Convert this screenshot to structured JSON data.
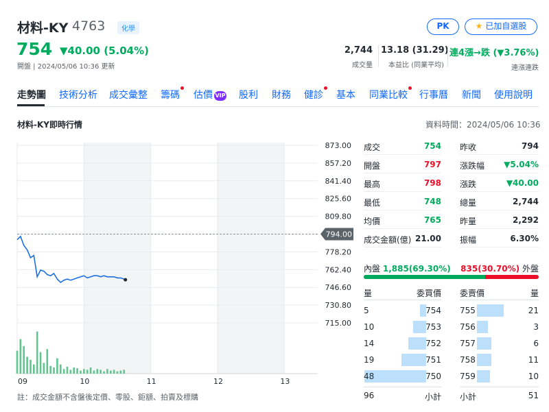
{
  "header": {
    "name": "材料-KY",
    "code": "4763",
    "category": "化學",
    "pk_label": "PK",
    "watch_label": "已加自選股",
    "price": "754",
    "change": "▼40.00 (5.04%)",
    "status_time": "開盤 | 2024/05/06 10:36 更新",
    "stats": [
      {
        "value": "2,744",
        "label": "成交量"
      },
      {
        "value": "13.18 (31.29)",
        "label": "本益比 (同業平均)"
      },
      {
        "value": "連4漲→跌 (▼3.76%)",
        "label": "連漲連跌"
      }
    ]
  },
  "tabs": [
    {
      "label": "走勢圖",
      "active": true,
      "dot": false
    },
    {
      "label": "技術分析",
      "dot": false
    },
    {
      "label": "成交彙整",
      "dot": false
    },
    {
      "label": "籌碼",
      "dot": true
    },
    {
      "label": "估價",
      "dot": false,
      "vip": "VIP"
    },
    {
      "label": "股利",
      "dot": false
    },
    {
      "label": "財務",
      "dot": false
    },
    {
      "label": "健診",
      "dot": true
    },
    {
      "label": "基本",
      "dot": false
    },
    {
      "label": "同業比較",
      "dot": true
    },
    {
      "label": "行事曆",
      "dot": false
    },
    {
      "label": "新聞",
      "dot": false
    },
    {
      "label": "使用說明",
      "dot": false
    }
  ],
  "section": {
    "title": "材料-KY即時行情",
    "data_time": "資料時間：2024/05/06 10:36"
  },
  "colors": {
    "up": "#eb0f29",
    "down": "#00ab5e",
    "line": "#1a6fe0",
    "volume": "#5fc48d",
    "accent": "#0f69ff"
  },
  "chart_data": {
    "type": "line",
    "x_ticks": [
      "09",
      "10",
      "11",
      "12",
      "13"
    ],
    "x_range": [
      9.0,
      13.5
    ],
    "y_ticks": [
      "873.00",
      "857.20",
      "841.40",
      "825.60",
      "809.80",
      "778.20",
      "762.40",
      "746.60",
      "730.80",
      "715.00"
    ],
    "ylim": [
      715,
      873
    ],
    "reference": {
      "value": 794,
      "label": "794.00"
    },
    "series": [
      {
        "x": [
          9.0,
          9.05,
          9.1,
          9.15,
          9.2,
          9.25,
          9.3,
          9.35,
          9.4,
          9.45,
          9.5,
          9.55,
          9.6,
          9.65,
          9.7,
          9.75,
          9.8,
          9.85,
          9.9,
          9.95,
          10.0,
          10.05,
          10.1,
          10.15,
          10.2,
          10.25,
          10.3,
          10.35,
          10.4,
          10.45,
          10.5,
          10.55,
          10.6
        ],
        "y": [
          789,
          792,
          784,
          780,
          773,
          775,
          756,
          762,
          761,
          758,
          757,
          759,
          754,
          751,
          753,
          754,
          753,
          754,
          755,
          756,
          757,
          755,
          756,
          757,
          757,
          756,
          757,
          756,
          756,
          756,
          755,
          755,
          754
        ]
      }
    ],
    "volume": [
      30,
      45,
      36,
      22,
      18,
      12,
      55,
      28,
      14,
      32,
      10,
      8,
      20,
      12,
      6,
      9,
      5,
      8,
      7,
      4,
      6,
      5,
      8,
      4,
      6,
      5,
      3,
      6,
      4,
      5,
      3,
      4,
      5
    ]
  },
  "stats": {
    "left": [
      {
        "label": "成交",
        "value": "754",
        "color": "down"
      },
      {
        "label": "開盤",
        "value": "797",
        "color": "up"
      },
      {
        "label": "最高",
        "value": "798",
        "color": "up"
      },
      {
        "label": "最低",
        "value": "748",
        "color": "down"
      },
      {
        "label": "均價",
        "value": "765",
        "color": "down"
      },
      {
        "label": "成交金額(億)",
        "value": "21.00",
        "color": "none"
      }
    ],
    "right": [
      {
        "label": "昨收",
        "value": "794",
        "color": "none"
      },
      {
        "label": "漲跌幅",
        "value": "▼5.04%",
        "color": "down"
      },
      {
        "label": "漲跌",
        "value": "▼40.00",
        "color": "down"
      },
      {
        "label": "總量",
        "value": "2,744",
        "color": "none"
      },
      {
        "label": "昨量",
        "value": "2,292",
        "color": "none"
      },
      {
        "label": "振幅",
        "value": "6.30%",
        "color": "none"
      }
    ]
  },
  "inout": {
    "in_label": "內盤",
    "in_value": "1,885(69.30%)",
    "out_value": "835(30.70%)",
    "out_label": "外盤",
    "in_fraction": 0.693
  },
  "orderbook": {
    "headers": {
      "bid_qty": "量",
      "bid_price": "委買價",
      "ask_price": "委賣價",
      "ask_qty": "量"
    },
    "bids": [
      {
        "qty": "5",
        "price": "754",
        "size": 5
      },
      {
        "qty": "10",
        "price": "753",
        "size": 10
      },
      {
        "qty": "14",
        "price": "752",
        "size": 14
      },
      {
        "qty": "19",
        "price": "751",
        "size": 19
      },
      {
        "qty": "48",
        "price": "750",
        "size": 48
      }
    ],
    "asks": [
      {
        "price": "755",
        "qty": "21",
        "size": 21
      },
      {
        "price": "756",
        "qty": "3",
        "size": 3
      },
      {
        "price": "757",
        "qty": "6",
        "size": 6
      },
      {
        "price": "758",
        "qty": "11",
        "size": 11
      },
      {
        "price": "759",
        "qty": "10",
        "size": 10
      }
    ],
    "bid_total": "96",
    "ask_total": "51",
    "subtotal_label": "小計"
  },
  "footnote": "註：成交金額不含盤後定價、零股、鉅額、拍賣及標購"
}
